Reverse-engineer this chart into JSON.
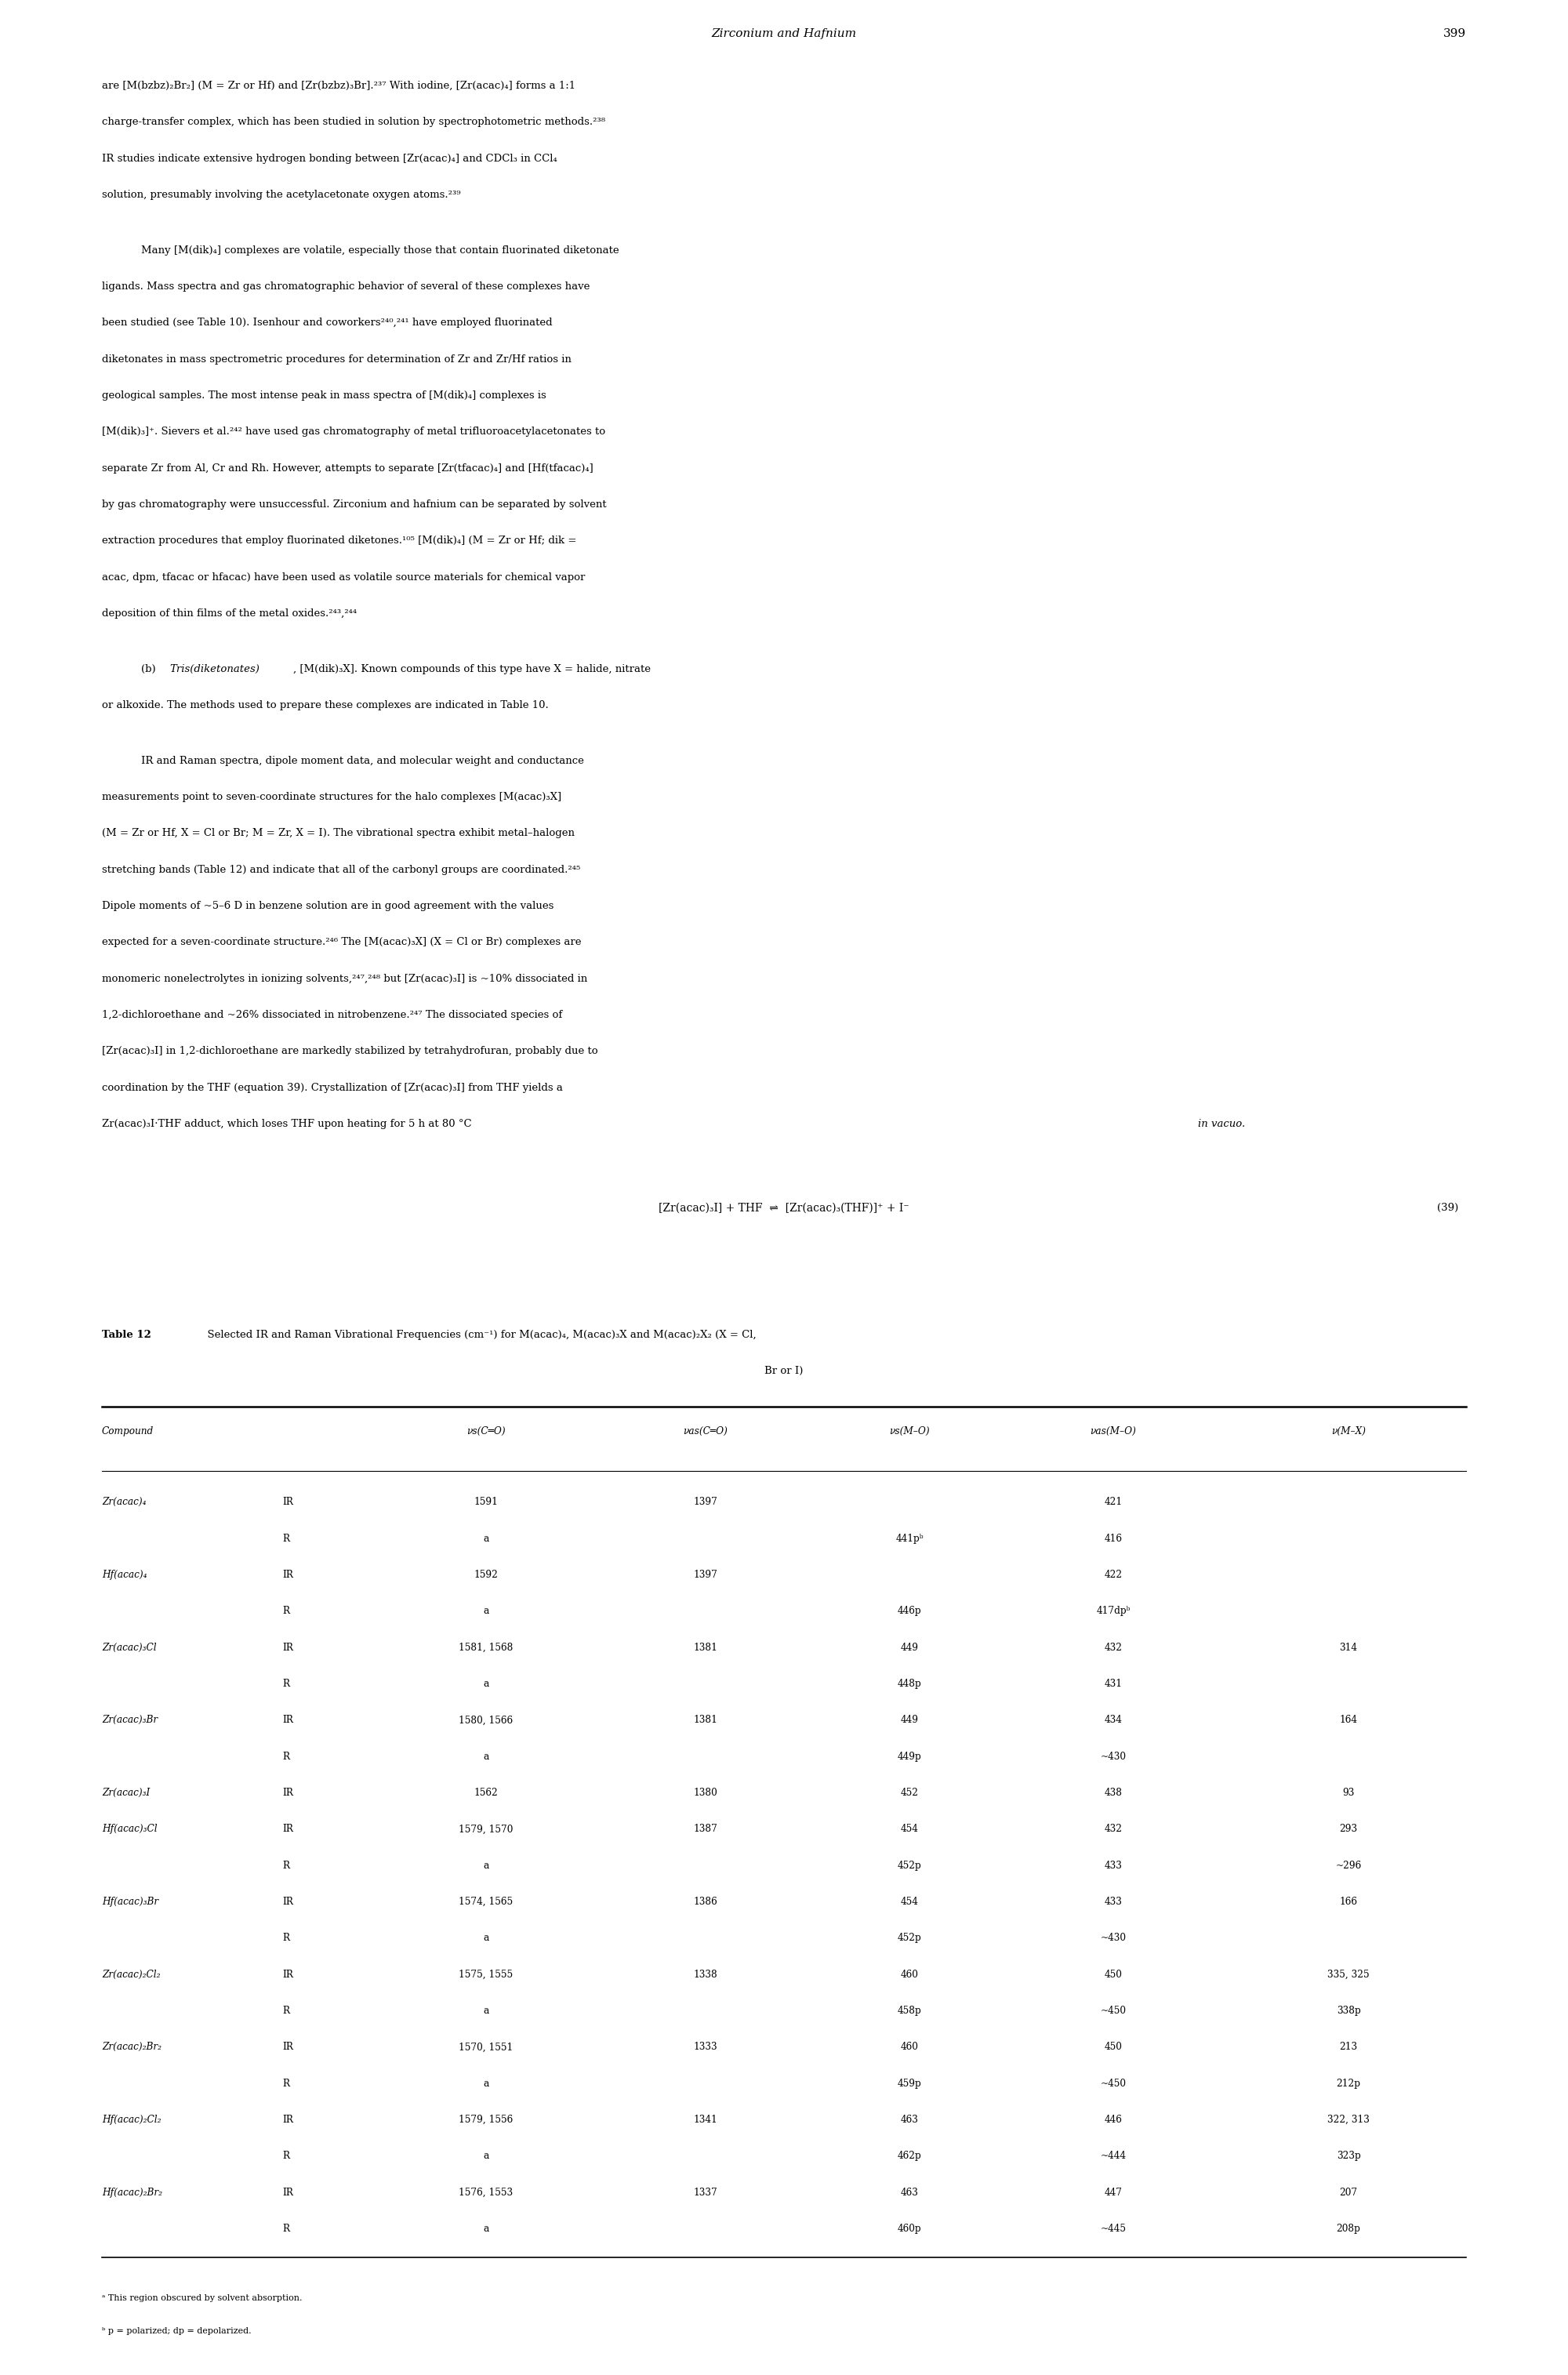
{
  "page_title": "Zirconium and Hafnium",
  "page_number": "399",
  "background_color": "#ffffff",
  "text_color": "#000000",
  "table_rows": [
    [
      "Zr(acac)₄",
      "IR",
      "1591",
      "1397",
      "",
      "421",
      ""
    ],
    [
      "",
      "R",
      "a",
      "",
      "441pᵇ",
      "416",
      ""
    ],
    [
      "Hf(acac)₄",
      "IR",
      "1592",
      "1397",
      "",
      "422",
      ""
    ],
    [
      "",
      "R",
      "a",
      "",
      "446p",
      "417dpᵇ",
      ""
    ],
    [
      "Zr(acac)₃Cl",
      "IR",
      "1581, 1568",
      "1381",
      "449",
      "432",
      "314"
    ],
    [
      "",
      "R",
      "a",
      "",
      "448p",
      "431",
      ""
    ],
    [
      "Zr(acac)₃Br",
      "IR",
      "1580, 1566",
      "1381",
      "449",
      "434",
      "164"
    ],
    [
      "",
      "R",
      "a",
      "",
      "449p",
      "~430",
      ""
    ],
    [
      "Zr(acac)₃I",
      "IR",
      "1562",
      "1380",
      "452",
      "438",
      "93"
    ],
    [
      "Hf(acac)₃Cl",
      "IR",
      "1579, 1570",
      "1387",
      "454",
      "432",
      "293"
    ],
    [
      "",
      "R",
      "a",
      "",
      "452p",
      "433",
      "~296"
    ],
    [
      "Hf(acac)₃Br",
      "IR",
      "1574, 1565",
      "1386",
      "454",
      "433",
      "166"
    ],
    [
      "",
      "R",
      "a",
      "",
      "452p",
      "~430",
      ""
    ],
    [
      "Zr(acac)₂Cl₂",
      "IR",
      "1575, 1555",
      "1338",
      "460",
      "450",
      "335, 325"
    ],
    [
      "",
      "R",
      "a",
      "",
      "458p",
      "~450",
      "338p"
    ],
    [
      "Zr(acac)₂Br₂",
      "IR",
      "1570, 1551",
      "1333",
      "460",
      "450",
      "213"
    ],
    [
      "",
      "R",
      "a",
      "",
      "459p",
      "~450",
      "212p"
    ],
    [
      "Hf(acac)₂Cl₂",
      "IR",
      "1579, 1556",
      "1341",
      "463",
      "446",
      "322, 313"
    ],
    [
      "",
      "R",
      "a",
      "",
      "462p",
      "~444",
      "323p"
    ],
    [
      "Hf(acac)₂Br₂",
      "IR",
      "1576, 1553",
      "1337",
      "463",
      "447",
      "207"
    ],
    [
      "",
      "R",
      "a",
      "",
      "460p",
      "~445",
      "208p"
    ]
  ],
  "footnotes": [
    "ᵃ This region obscured by solvent absorption.",
    "ᵇ p = polarized; dp = depolarized."
  ]
}
